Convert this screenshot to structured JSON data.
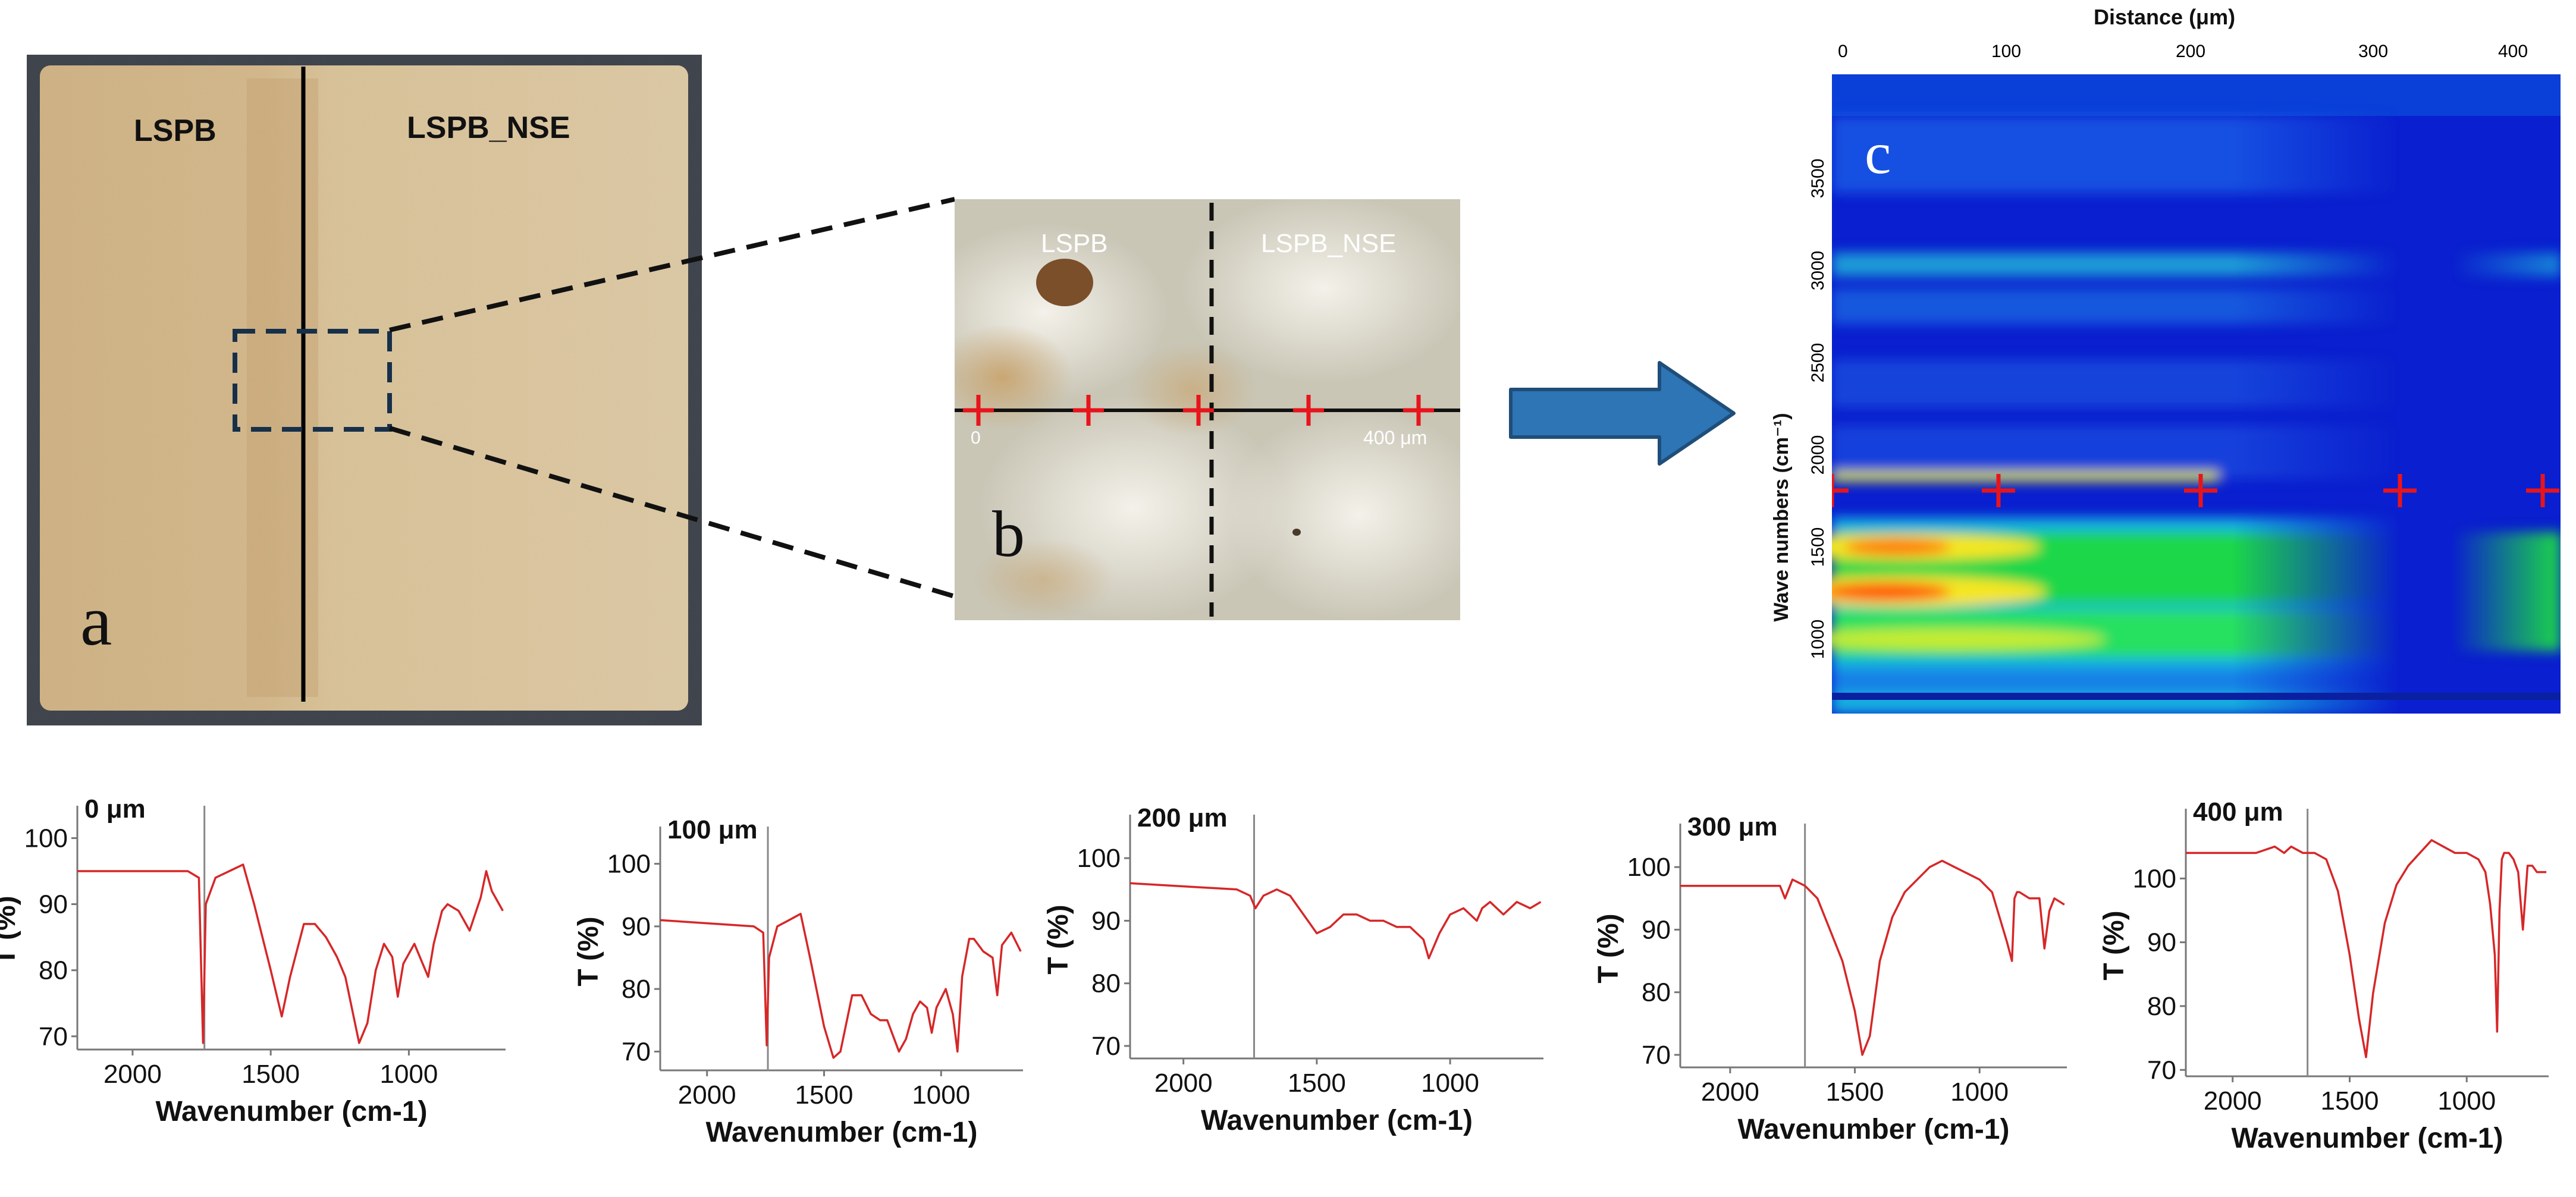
{
  "panel_a": {
    "label": "a",
    "left_region": "LSPB",
    "right_region": "LSPB_NSE"
  },
  "panel_b": {
    "label": "b",
    "left_region": "LSPB",
    "right_region": "LSPB_NSE",
    "start_tick": "0",
    "end_tick": "400 μm",
    "cross_positions_um": [
      0,
      100,
      200,
      300,
      400
    ]
  },
  "panel_c": {
    "label": "c",
    "top_axis_title": "Distance (μm)",
    "left_axis_title": "Wave numbers (cm⁻¹)",
    "x_ticks": [
      "0",
      "100",
      "200",
      "300",
      "400"
    ],
    "y_ticks": [
      "3500",
      "3000",
      "2500",
      "2000",
      "1500",
      "1000"
    ]
  },
  "colors": {
    "spectrum": "#d62728",
    "marker": "#e8141c",
    "arrow": "#2e75b6"
  },
  "chart_data": [
    {
      "type": "line",
      "title": "0 μm",
      "xlabel": "Wavenumber (cm-1)",
      "ylabel": "T (%)",
      "xlim": [
        2200,
        650
      ],
      "ylim": [
        68,
        104
      ],
      "xticks": [
        "2000",
        "1500",
        "1000"
      ],
      "yticks": [
        "100",
        "90",
        "80",
        "70"
      ],
      "ref_line_x": 1740,
      "x": [
        2200,
        1800,
        1760,
        1745,
        1735,
        1700,
        1650,
        1600,
        1560,
        1500,
        1460,
        1430,
        1380,
        1340,
        1300,
        1260,
        1230,
        1180,
        1150,
        1120,
        1090,
        1060,
        1040,
        1020,
        980,
        950,
        930,
        910,
        880,
        860,
        820,
        780,
        740,
        720,
        700,
        660
      ],
      "y": [
        95,
        95,
        94,
        69,
        90,
        94,
        95,
        96,
        90,
        80,
        73,
        79,
        87,
        87,
        85,
        82,
        79,
        69,
        72,
        80,
        84,
        82,
        76,
        81,
        84,
        81,
        79,
        84,
        89,
        90,
        89,
        86,
        91,
        95,
        92,
        89
      ]
    },
    {
      "type": "line",
      "title": "100 μm",
      "xlabel": "Wavenumber (cm-1)",
      "ylabel": "T (%)",
      "xlim": [
        2200,
        650
      ],
      "ylim": [
        67,
        105
      ],
      "xticks": [
        "2000",
        "1500",
        "1000"
      ],
      "yticks": [
        "100",
        "90",
        "80",
        "70"
      ],
      "ref_line_x": 1740,
      "x": [
        2200,
        1800,
        1760,
        1745,
        1735,
        1700,
        1650,
        1600,
        1560,
        1500,
        1460,
        1430,
        1380,
        1340,
        1300,
        1260,
        1230,
        1180,
        1150,
        1120,
        1090,
        1060,
        1040,
        1020,
        980,
        950,
        930,
        910,
        880,
        860,
        820,
        780,
        760,
        740,
        700,
        660
      ],
      "y": [
        91,
        90,
        89,
        71,
        85,
        90,
        91,
        92,
        85,
        74,
        69,
        70,
        79,
        79,
        76,
        75,
        75,
        70,
        72,
        76,
        78,
        77,
        73,
        77,
        80,
        76,
        70,
        82,
        88,
        88,
        86,
        85,
        79,
        87,
        89,
        86
      ]
    },
    {
      "type": "line",
      "title": "200 μm",
      "xlabel": "Wavenumber (cm-1)",
      "ylabel": "T (%)",
      "xlim": [
        2200,
        650
      ],
      "ylim": [
        68,
        106
      ],
      "xticks": [
        "2000",
        "1500",
        "1000"
      ],
      "yticks": [
        "100",
        "90",
        "80",
        "70"
      ],
      "ref_line_x": 1735,
      "x": [
        2200,
        1800,
        1750,
        1730,
        1700,
        1650,
        1600,
        1550,
        1500,
        1450,
        1400,
        1350,
        1300,
        1250,
        1200,
        1150,
        1100,
        1080,
        1060,
        1040,
        1000,
        950,
        900,
        880,
        850,
        800,
        750,
        700,
        660
      ],
      "y": [
        96,
        95,
        94,
        92,
        94,
        95,
        94,
        91,
        88,
        89,
        91,
        91,
        90,
        90,
        89,
        89,
        87,
        84,
        86,
        88,
        91,
        92,
        90,
        92,
        93,
        91,
        93,
        92,
        93
      ]
    },
    {
      "type": "line",
      "title": "300 μm",
      "xlabel": "Wavenumber (cm-1)",
      "ylabel": "T (%)",
      "xlim": [
        2200,
        650
      ],
      "ylim": [
        68,
        106
      ],
      "xticks": [
        "2000",
        "1500",
        "1000"
      ],
      "yticks": [
        "100",
        "90",
        "80",
        "70"
      ],
      "ref_line_x": 1700,
      "x": [
        2200,
        1900,
        1800,
        1780,
        1750,
        1700,
        1650,
        1600,
        1550,
        1500,
        1470,
        1440,
        1400,
        1350,
        1300,
        1250,
        1200,
        1150,
        1100,
        1050,
        1000,
        950,
        920,
        890,
        870,
        860,
        850,
        840,
        800,
        760,
        740,
        720,
        700,
        660
      ],
      "y": [
        97,
        97,
        97,
        95,
        98,
        97,
        95,
        90,
        85,
        77,
        70,
        73,
        85,
        92,
        96,
        98,
        100,
        101,
        100,
        99,
        98,
        96,
        92,
        88,
        85,
        95,
        96,
        96,
        95,
        95,
        87,
        93,
        95,
        94
      ]
    },
    {
      "type": "line",
      "title": "400 μm",
      "xlabel": "Wavenumber (cm-1)",
      "ylabel": "T (%)",
      "xlim": [
        2200,
        650
      ],
      "ylim": [
        69,
        110
      ],
      "xticks": [
        "2000",
        "1500",
        "1000"
      ],
      "yticks": [
        "100",
        "90",
        "80",
        "70"
      ],
      "ref_line_x": 1680,
      "x": [
        2200,
        1900,
        1820,
        1780,
        1750,
        1700,
        1650,
        1600,
        1550,
        1500,
        1460,
        1430,
        1400,
        1350,
        1300,
        1250,
        1200,
        1150,
        1100,
        1050,
        1000,
        950,
        920,
        900,
        880,
        870,
        860,
        850,
        840,
        820,
        800,
        780,
        760,
        740,
        720,
        700,
        660
      ],
      "y": [
        104,
        104,
        105,
        104,
        105,
        104,
        104,
        103,
        98,
        88,
        78,
        72,
        82,
        93,
        99,
        102,
        104,
        106,
        105,
        104,
        104,
        103,
        101,
        96,
        88,
        76,
        95,
        103,
        104,
        104,
        103,
        101,
        92,
        102,
        102,
        101,
        101
      ]
    }
  ]
}
